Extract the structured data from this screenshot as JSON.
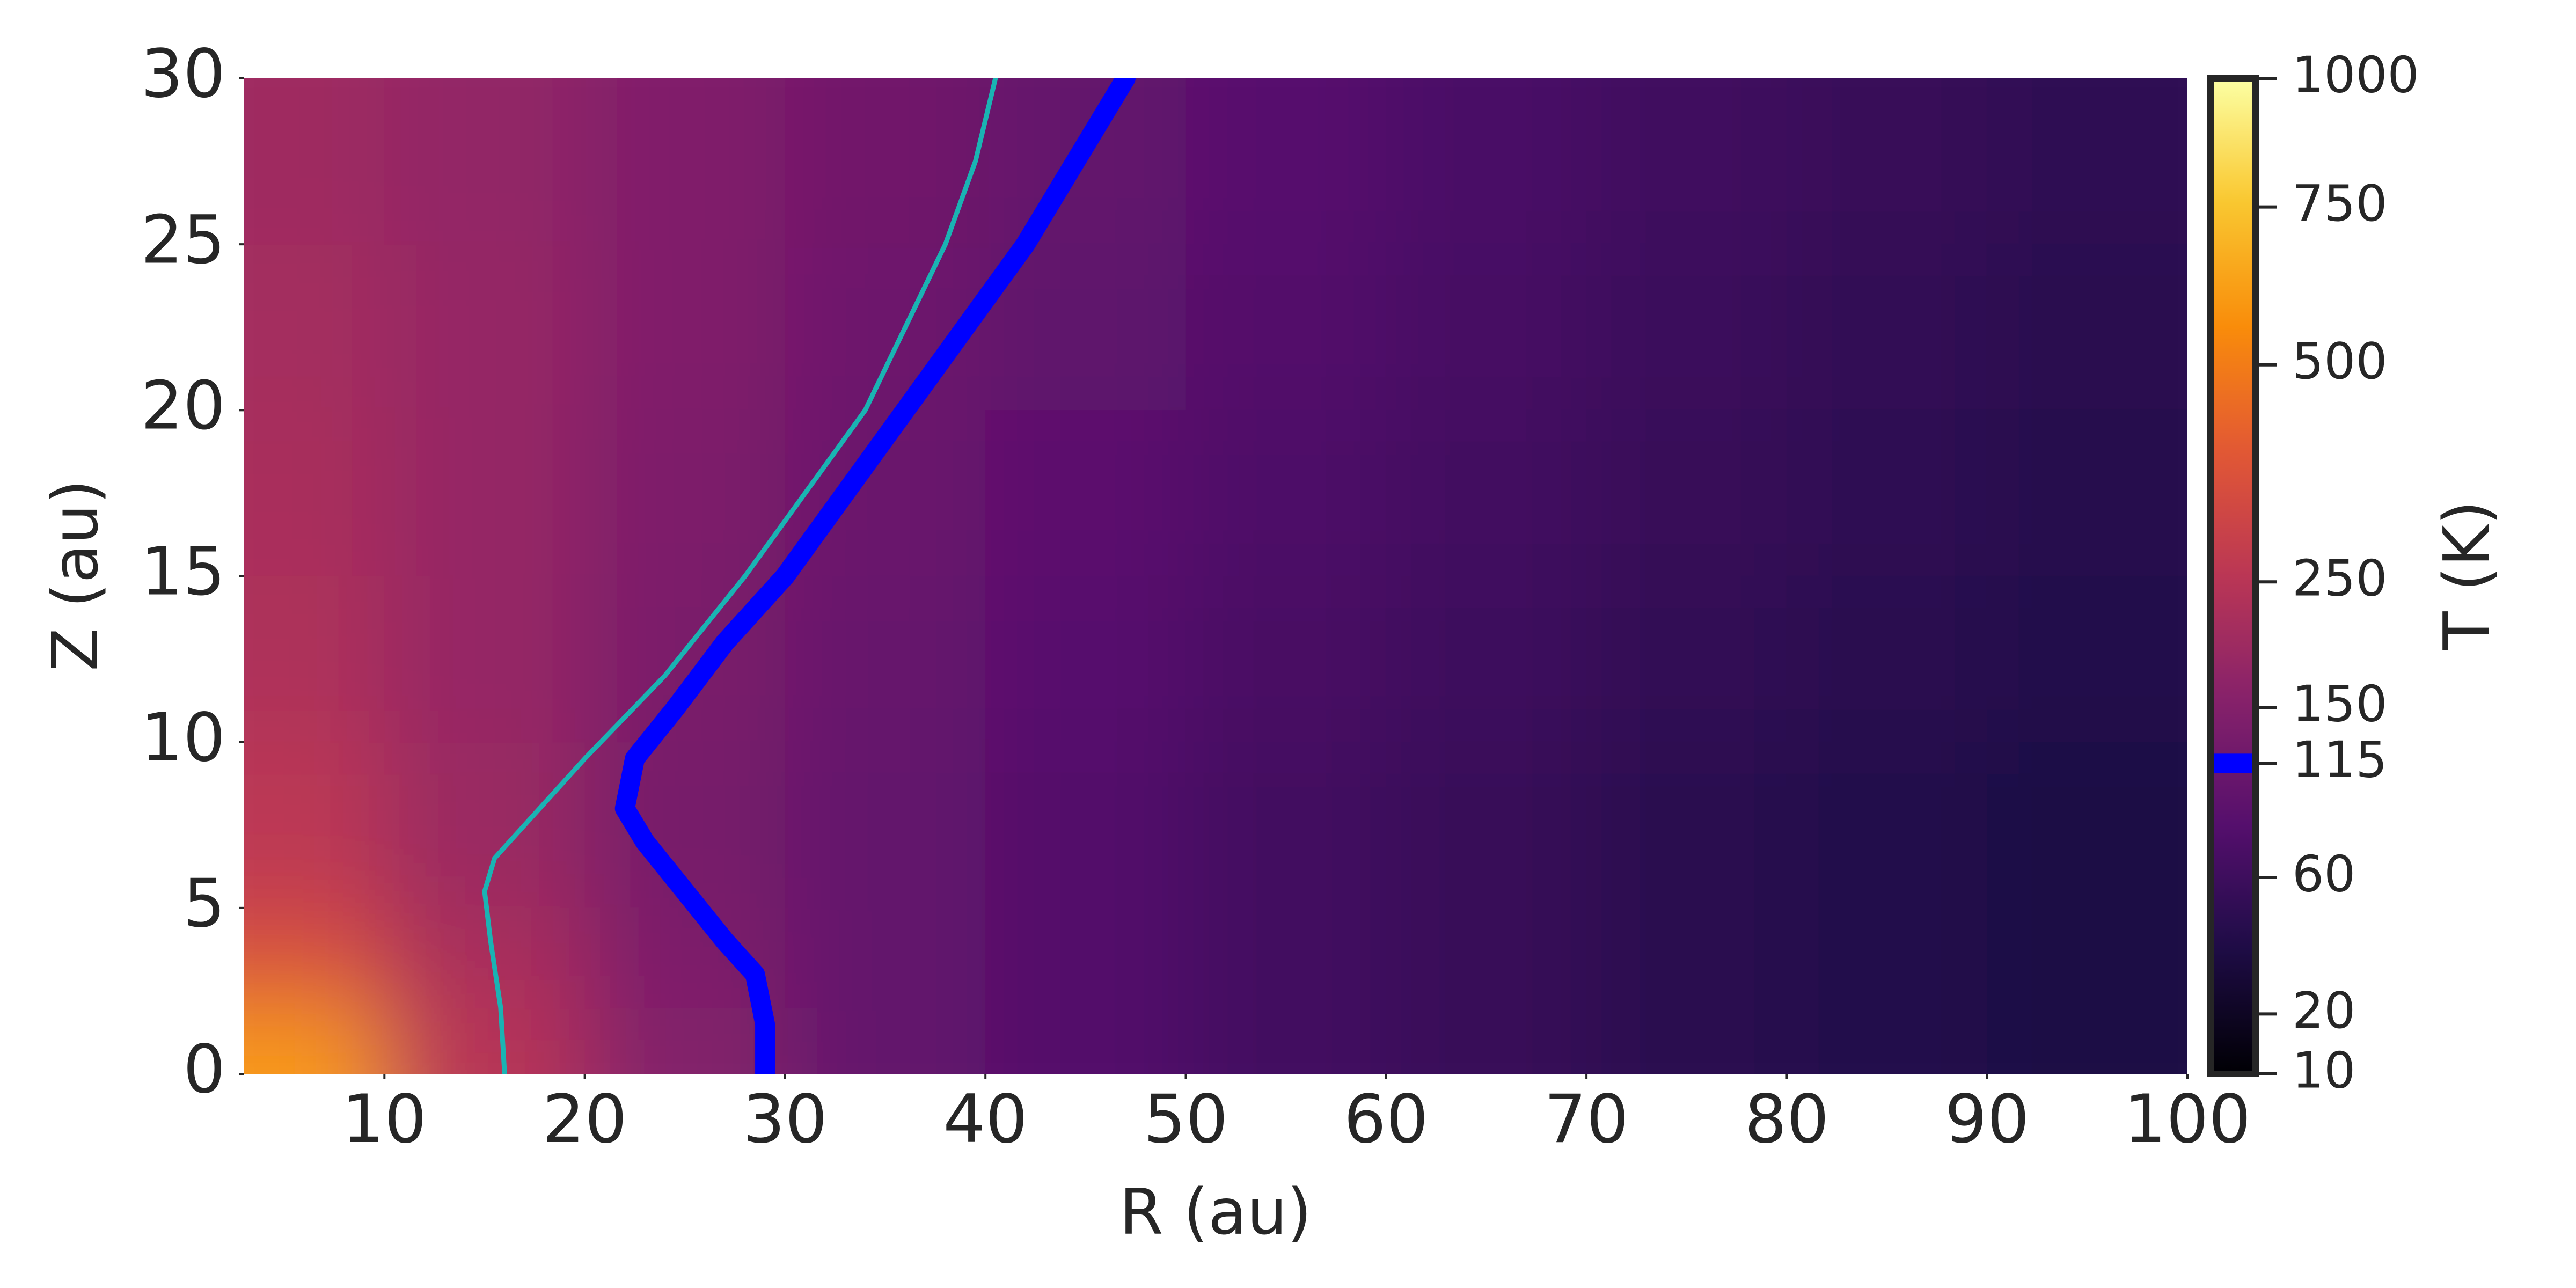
{
  "chart_data": {
    "type": "heatmap",
    "x_label": "R (au)",
    "y_label": "Z (au)",
    "xlim": [
      3,
      100
    ],
    "ylim": [
      0,
      30
    ],
    "xticks": [
      10,
      20,
      30,
      40,
      50,
      60,
      70,
      80,
      90,
      100
    ],
    "yticks": [
      0,
      5,
      10,
      15,
      20,
      25,
      30
    ],
    "heatmap": {
      "x_edges": [
        3,
        10,
        20,
        30,
        40,
        50,
        60,
        70,
        80,
        90,
        100
      ],
      "y_edges": [
        0,
        2,
        5,
        10,
        15,
        20,
        25,
        30
      ],
      "values": [
        [
          600,
          250,
          150,
          100,
          80,
          65,
          55,
          45,
          40,
          35
        ],
        [
          350,
          220,
          140,
          100,
          80,
          65,
          55,
          45,
          40,
          35
        ],
        [
          260,
          190,
          130,
          100,
          80,
          65,
          55,
          45,
          40,
          35
        ],
        [
          230,
          180,
          135,
          105,
          85,
          70,
          60,
          50,
          45,
          40
        ],
        [
          220,
          180,
          140,
          110,
          90,
          75,
          65,
          55,
          48,
          42
        ],
        [
          210,
          180,
          145,
          115,
          95,
          80,
          68,
          58,
          50,
          45
        ],
        [
          200,
          175,
          145,
          120,
          100,
          85,
          72,
          62,
          55,
          48
        ]
      ]
    },
    "colormap": "inferno",
    "colorbar": {
      "label": "T (K)",
      "lim": [
        10,
        1000
      ],
      "norm": "power",
      "gamma": 0.4,
      "ticks": [
        10,
        20,
        60,
        115,
        150,
        250,
        500,
        750,
        1000
      ],
      "marker_level": 115,
      "marker_color": "#0000ff"
    },
    "series": [
      {
        "color": "#1ab3b3",
        "linewidth": 9,
        "x": [
          16,
          15.8,
          15.3,
          15,
          15.5,
          17,
          20,
          24,
          28,
          31,
          34,
          36,
          38,
          39.5,
          40.5
        ],
        "values": [
          0,
          2,
          4,
          5.5,
          6.5,
          7.5,
          9.5,
          12,
          15,
          17.5,
          20,
          22.5,
          25,
          27.5,
          30
        ]
      },
      {
        "color": "#0000ff",
        "linewidth": 37,
        "x": [
          29,
          29,
          28.5,
          27,
          25,
          23,
          22,
          22.5,
          24.5,
          27,
          30,
          33,
          36,
          39,
          42,
          44.5,
          47
        ],
        "values": [
          0,
          1.5,
          3,
          4,
          5.5,
          7,
          8,
          9.5,
          11,
          13,
          15,
          17.5,
          20,
          22.5,
          25,
          27.5,
          30
        ]
      }
    ]
  }
}
